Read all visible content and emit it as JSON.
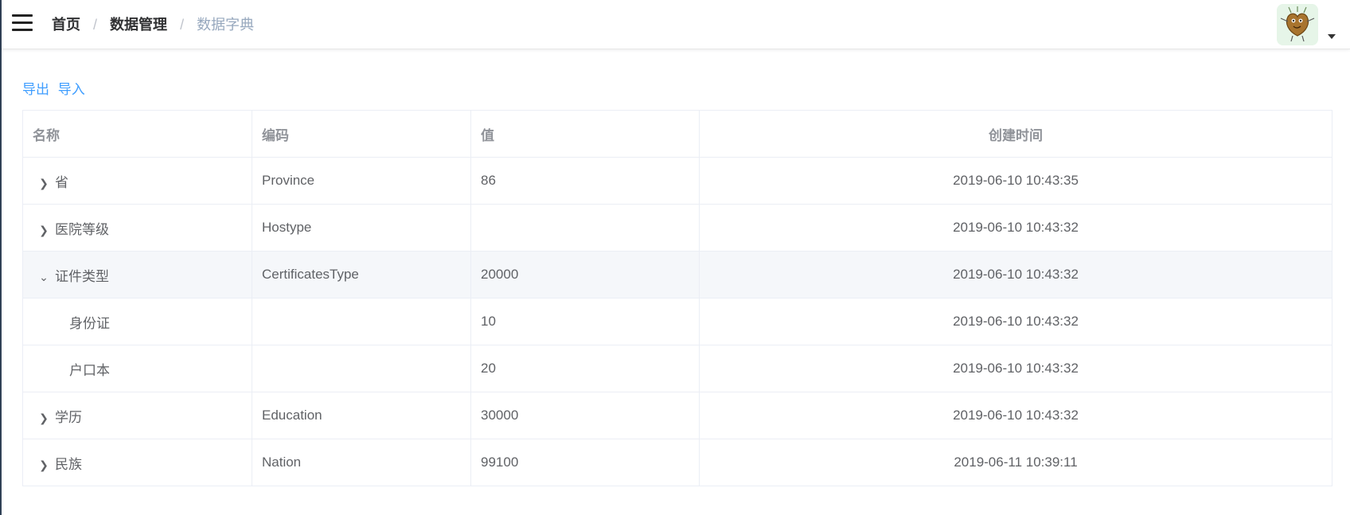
{
  "breadcrumb": {
    "home": "首页",
    "section": "数据管理",
    "current": "数据字典",
    "separator": "/"
  },
  "actions": {
    "export_label": "导出",
    "import_label": "导入"
  },
  "table": {
    "headers": {
      "name": "名称",
      "code": "编码",
      "value": "值",
      "created": "创建时间"
    },
    "rows": [
      {
        "name": "省",
        "code": "Province",
        "value": "86",
        "created": "2019-06-10 10:43:35"
      },
      {
        "name": "医院等级",
        "code": "Hostype",
        "value": "",
        "created": "2019-06-10 10:43:32"
      },
      {
        "name": "证件类型",
        "code": "CertificatesType",
        "value": "20000",
        "created": "2019-06-10 10:43:32"
      },
      {
        "name": "身份证",
        "code": "",
        "value": "10",
        "created": "2019-06-10 10:43:32"
      },
      {
        "name": "户口本",
        "code": "",
        "value": "20",
        "created": "2019-06-10 10:43:32"
      },
      {
        "name": "学历",
        "code": "Education",
        "value": "30000",
        "created": "2019-06-10 10:43:32"
      },
      {
        "name": "民族",
        "code": "Nation",
        "value": "99100",
        "created": "2019-06-11 10:39:11"
      }
    ]
  },
  "icons": {
    "collapsed": "chevron-right-icon",
    "expanded": "chevron-down-icon",
    "menu": "hamburger-icon",
    "dropdown": "caret-down-icon"
  },
  "colors": {
    "link": "#409eff",
    "sidebar_edge": "#304156",
    "row_highlight": "#f5f7fa"
  }
}
